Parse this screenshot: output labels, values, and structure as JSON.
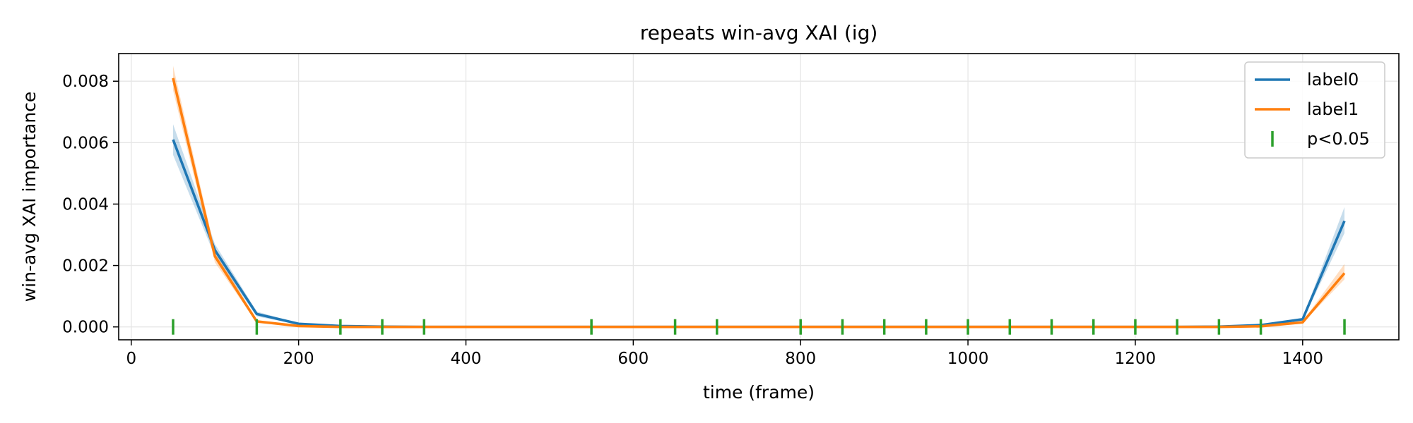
{
  "chart_data": {
    "type": "line",
    "title": "repeats win-avg XAI (ig)",
    "xlabel": "time (frame)",
    "ylabel": "win-avg XAI importance",
    "xlim": [
      -15,
      1515
    ],
    "ylim": [
      -0.00042,
      0.0089
    ],
    "xticks": [
      0,
      200,
      400,
      600,
      800,
      1000,
      1200,
      1400
    ],
    "yticks": [
      0.0,
      0.002,
      0.004,
      0.006,
      0.008
    ],
    "ytick_labels": [
      "0.000",
      "0.002",
      "0.004",
      "0.006",
      "0.008"
    ],
    "grid": true,
    "legend_position": "top-right",
    "x": [
      50,
      100,
      150,
      200,
      250,
      300,
      350,
      400,
      450,
      500,
      550,
      600,
      650,
      700,
      750,
      800,
      850,
      900,
      950,
      1000,
      1050,
      1100,
      1150,
      1200,
      1250,
      1300,
      1350,
      1400,
      1450
    ],
    "series": [
      {
        "name": "label0",
        "color": "#1f77b4",
        "values": [
          0.0061,
          0.0025,
          0.00042,
          0.0001,
          3e-05,
          1e-05,
          0,
          0,
          0,
          0,
          0,
          0,
          0,
          0,
          0,
          0,
          0,
          0,
          0,
          0,
          0,
          0,
          0,
          0,
          0,
          1e-05,
          6e-05,
          0.00025,
          0.00345
        ],
        "lower": [
          0.0056,
          0.0023,
          0.00034,
          8e-05,
          2e-05,
          1e-05,
          0,
          0,
          0,
          0,
          0,
          0,
          0,
          0,
          0,
          0,
          0,
          0,
          0,
          0,
          0,
          0,
          0,
          0,
          0,
          1e-05,
          4e-05,
          0.00021,
          0.00305
        ],
        "upper": [
          0.0066,
          0.0027,
          0.0005,
          0.00012,
          4e-05,
          1e-05,
          0,
          0,
          0,
          0,
          0,
          0,
          0,
          0,
          0,
          0,
          0,
          0,
          0,
          0,
          0,
          0,
          0,
          0,
          0,
          1e-05,
          8e-05,
          0.00029,
          0.0039
        ]
      },
      {
        "name": "label1",
        "color": "#ff7f0e",
        "values": [
          0.0081,
          0.0023,
          0.00018,
          3e-05,
          0,
          0,
          0,
          0,
          0,
          0,
          0,
          0,
          0,
          0,
          0,
          0,
          0,
          0,
          0,
          0,
          0,
          0,
          0,
          0,
          0,
          0,
          2e-05,
          0.00015,
          0.00175
        ],
        "lower": [
          0.0077,
          0.0021,
          0.00014,
          2e-05,
          0,
          0,
          0,
          0,
          0,
          0,
          0,
          0,
          0,
          0,
          0,
          0,
          0,
          0,
          0,
          0,
          0,
          0,
          0,
          0,
          0,
          0,
          1e-05,
          0.00012,
          0.00155
        ],
        "upper": [
          0.0085,
          0.0025,
          0.00022,
          4e-05,
          0,
          0,
          0,
          0,
          0,
          0,
          0,
          0,
          0,
          0,
          0,
          0,
          0,
          0,
          0,
          0,
          0,
          0,
          0,
          0,
          0,
          0,
          3e-05,
          0.00018,
          0.00205
        ]
      }
    ],
    "significance": {
      "name": "p<0.05",
      "color": "#2ca02c",
      "x": [
        50,
        150,
        250,
        300,
        350,
        550,
        650,
        700,
        800,
        850,
        900,
        950,
        1000,
        1050,
        1100,
        1150,
        1200,
        1250,
        1300,
        1350,
        1450
      ],
      "y": 0.0
    }
  }
}
